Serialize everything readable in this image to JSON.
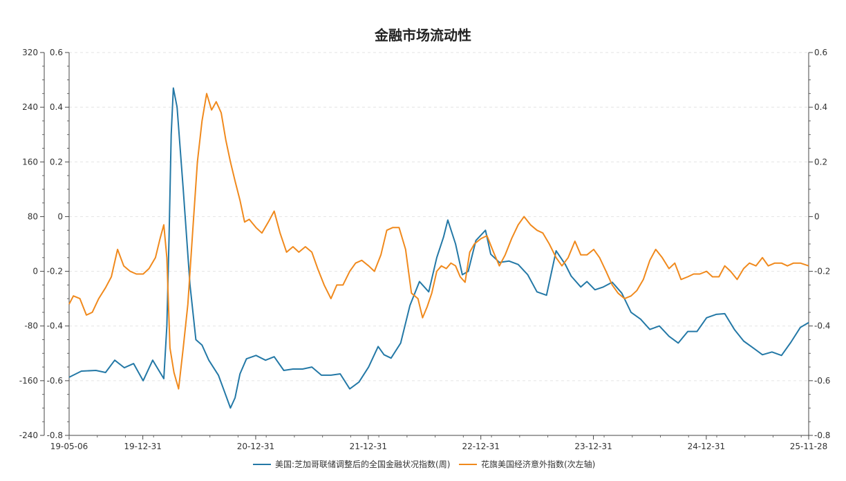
{
  "chart_data": {
    "type": "line",
    "title": "金融市场流动性",
    "x_ticks": [
      "19-05-06",
      "19-12-31",
      "20-12-31",
      "21-12-31",
      "22-12-31",
      "23-12-31",
      "24-12-31",
      "25-11-28"
    ],
    "x_tick_dates": [
      "2019-05-06",
      "2019-12-31",
      "2020-12-31",
      "2021-12-31",
      "2022-12-31",
      "2023-12-31",
      "2024-12-31",
      "2025-11-28"
    ],
    "y_left_outer": {
      "ticks": [
        "320",
        "240",
        "160",
        "80",
        "0",
        "-80",
        "-160",
        "-240"
      ],
      "range": [
        -240,
        320
      ]
    },
    "y_left_inner": {
      "ticks": [
        "0.6",
        "0.4",
        "0.2",
        "0",
        "-0.2",
        "-0.4",
        "-0.6",
        "-0.8"
      ],
      "range": [
        -0.8,
        0.6
      ]
    },
    "y_right": {
      "ticks": [
        "0.6",
        "0.4",
        "0.2",
        "0",
        "-0.2",
        "-0.4",
        "-0.6",
        "-0.8"
      ],
      "range": [
        -0.8,
        0.6
      ]
    },
    "series": [
      {
        "name": "美国:芝加哥联储调整后的全国金融状况指数(周)",
        "color": "#2378a6",
        "axis": "left-outer",
        "points": [
          [
            "2019-05-06",
            -155
          ],
          [
            "2019-06-15",
            -146
          ],
          [
            "2019-08-01",
            -145
          ],
          [
            "2019-09-01",
            -148
          ],
          [
            "2019-10-01",
            -130
          ],
          [
            "2019-11-01",
            -141
          ],
          [
            "2019-12-01",
            -135
          ],
          [
            "2020-01-01",
            -160
          ],
          [
            "2020-02-01",
            -130
          ],
          [
            "2020-02-25",
            -148
          ],
          [
            "2020-03-08",
            -157
          ],
          [
            "2020-03-18",
            -80
          ],
          [
            "2020-03-25",
            50
          ],
          [
            "2020-04-01",
            200
          ],
          [
            "2020-04-08",
            268
          ],
          [
            "2020-04-20",
            240
          ],
          [
            "2020-05-10",
            120
          ],
          [
            "2020-06-01",
            -20
          ],
          [
            "2020-06-20",
            -100
          ],
          [
            "2020-07-10",
            -108
          ],
          [
            "2020-08-01",
            -130
          ],
          [
            "2020-09-01",
            -152
          ],
          [
            "2020-09-20",
            -175
          ],
          [
            "2020-10-10",
            -200
          ],
          [
            "2020-10-25",
            -185
          ],
          [
            "2020-11-10",
            -150
          ],
          [
            "2020-12-01",
            -128
          ],
          [
            "2021-01-01",
            -123
          ],
          [
            "2021-02-01",
            -130
          ],
          [
            "2021-03-01",
            -125
          ],
          [
            "2021-04-01",
            -145
          ],
          [
            "2021-05-01",
            -143
          ],
          [
            "2021-06-01",
            -143
          ],
          [
            "2021-07-01",
            -140
          ],
          [
            "2021-08-01",
            -152
          ],
          [
            "2021-09-01",
            -152
          ],
          [
            "2021-10-01",
            -150
          ],
          [
            "2021-11-01",
            -172
          ],
          [
            "2021-12-01",
            -162
          ],
          [
            "2022-01-01",
            -140
          ],
          [
            "2022-02-01",
            -110
          ],
          [
            "2022-02-20",
            -122
          ],
          [
            "2022-03-15",
            -127
          ],
          [
            "2022-04-15",
            -105
          ],
          [
            "2022-05-15",
            -50
          ],
          [
            "2022-06-15",
            -15
          ],
          [
            "2022-07-15",
            -30
          ],
          [
            "2022-08-10",
            20
          ],
          [
            "2022-09-01",
            50
          ],
          [
            "2022-09-15",
            75
          ],
          [
            "2022-10-10",
            40
          ],
          [
            "2022-11-01",
            -5
          ],
          [
            "2022-11-20",
            0
          ],
          [
            "2022-12-15",
            45
          ],
          [
            "2023-01-15",
            60
          ],
          [
            "2023-02-01",
            25
          ],
          [
            "2023-03-01",
            13
          ],
          [
            "2023-04-01",
            15
          ],
          [
            "2023-05-01",
            10
          ],
          [
            "2023-06-01",
            -5
          ],
          [
            "2023-07-01",
            -30
          ],
          [
            "2023-08-01",
            -35
          ],
          [
            "2023-09-01",
            30
          ],
          [
            "2023-10-01",
            10
          ],
          [
            "2023-10-20",
            -7
          ],
          [
            "2023-11-20",
            -23
          ],
          [
            "2023-12-10",
            -15
          ],
          [
            "2024-01-05",
            -27
          ],
          [
            "2024-02-01",
            -23
          ],
          [
            "2024-03-01",
            -16
          ],
          [
            "2024-04-01",
            -32
          ],
          [
            "2024-05-01",
            -60
          ],
          [
            "2024-06-01",
            -70
          ],
          [
            "2024-07-01",
            -85
          ],
          [
            "2024-08-01",
            -80
          ],
          [
            "2024-09-01",
            -95
          ],
          [
            "2024-10-01",
            -105
          ],
          [
            "2024-11-01",
            -88
          ],
          [
            "2024-12-01",
            -88
          ],
          [
            "2025-01-01",
            -68
          ],
          [
            "2025-02-01",
            -63
          ],
          [
            "2025-03-01",
            -62
          ],
          [
            "2025-04-01",
            -85
          ],
          [
            "2025-05-01",
            -102
          ],
          [
            "2025-06-01",
            -112
          ],
          [
            "2025-07-01",
            -122
          ],
          [
            "2025-08-01",
            -118
          ],
          [
            "2025-09-01",
            -123
          ],
          [
            "2025-10-01",
            -104
          ],
          [
            "2025-11-01",
            -82
          ],
          [
            "2025-11-28",
            -75
          ]
        ]
      },
      {
        "name": "花旗美国经济意外指数(次左轴)",
        "color": "#f0891c",
        "axis": "left-inner",
        "points": [
          [
            "2019-05-06",
            -0.32
          ],
          [
            "2019-05-20",
            -0.29
          ],
          [
            "2019-06-10",
            -0.3
          ],
          [
            "2019-07-01",
            -0.36
          ],
          [
            "2019-07-20",
            -0.35
          ],
          [
            "2019-08-10",
            -0.3
          ],
          [
            "2019-09-01",
            -0.26
          ],
          [
            "2019-09-20",
            -0.22
          ],
          [
            "2019-10-10",
            -0.12
          ],
          [
            "2019-10-30",
            -0.18
          ],
          [
            "2019-11-20",
            -0.2
          ],
          [
            "2019-12-10",
            -0.21
          ],
          [
            "2020-01-01",
            -0.21
          ],
          [
            "2020-01-20",
            -0.19
          ],
          [
            "2020-02-10",
            -0.15
          ],
          [
            "2020-02-25",
            -0.08
          ],
          [
            "2020-03-08",
            -0.03
          ],
          [
            "2020-03-18",
            -0.15
          ],
          [
            "2020-03-28",
            -0.48
          ],
          [
            "2020-04-10",
            -0.57
          ],
          [
            "2020-04-25",
            -0.63
          ],
          [
            "2020-05-10",
            -0.48
          ],
          [
            "2020-05-25",
            -0.32
          ],
          [
            "2020-06-10",
            -0.05
          ],
          [
            "2020-06-25",
            0.2
          ],
          [
            "2020-07-10",
            0.35
          ],
          [
            "2020-07-25",
            0.45
          ],
          [
            "2020-08-10",
            0.39
          ],
          [
            "2020-08-25",
            0.42
          ],
          [
            "2020-09-10",
            0.38
          ],
          [
            "2020-09-25",
            0.28
          ],
          [
            "2020-10-10",
            0.2
          ],
          [
            "2020-10-25",
            0.13
          ],
          [
            "2020-11-10",
            0.06
          ],
          [
            "2020-11-25",
            -0.02
          ],
          [
            "2020-12-10",
            -0.01
          ],
          [
            "2021-01-01",
            -0.04
          ],
          [
            "2021-01-20",
            -0.06
          ],
          [
            "2021-02-10",
            -0.02
          ],
          [
            "2021-03-01",
            0.02
          ],
          [
            "2021-03-20",
            -0.06
          ],
          [
            "2021-04-10",
            -0.13
          ],
          [
            "2021-05-01",
            -0.11
          ],
          [
            "2021-05-20",
            -0.13
          ],
          [
            "2021-06-10",
            -0.11
          ],
          [
            "2021-07-01",
            -0.13
          ],
          [
            "2021-07-20",
            -0.19
          ],
          [
            "2021-08-10",
            -0.25
          ],
          [
            "2021-09-01",
            -0.3
          ],
          [
            "2021-09-20",
            -0.25
          ],
          [
            "2021-10-10",
            -0.25
          ],
          [
            "2021-11-01",
            -0.2
          ],
          [
            "2021-11-20",
            -0.17
          ],
          [
            "2021-12-10",
            -0.16
          ],
          [
            "2022-01-01",
            -0.18
          ],
          [
            "2022-01-20",
            -0.2
          ],
          [
            "2022-02-10",
            -0.14
          ],
          [
            "2022-03-01",
            -0.05
          ],
          [
            "2022-03-20",
            -0.04
          ],
          [
            "2022-04-10",
            -0.04
          ],
          [
            "2022-05-01",
            -0.12
          ],
          [
            "2022-05-20",
            -0.28
          ],
          [
            "2022-06-10",
            -0.3
          ],
          [
            "2022-06-25",
            -0.37
          ],
          [
            "2022-07-10",
            -0.33
          ],
          [
            "2022-07-25",
            -0.28
          ],
          [
            "2022-08-10",
            -0.2
          ],
          [
            "2022-08-25",
            -0.18
          ],
          [
            "2022-09-10",
            -0.19
          ],
          [
            "2022-09-25",
            -0.17
          ],
          [
            "2022-10-10",
            -0.18
          ],
          [
            "2022-10-25",
            -0.22
          ],
          [
            "2022-11-10",
            -0.24
          ],
          [
            "2022-11-25",
            -0.13
          ],
          [
            "2022-12-10",
            -0.1
          ],
          [
            "2023-01-01",
            -0.08
          ],
          [
            "2023-01-20",
            -0.07
          ],
          [
            "2023-02-10",
            -0.13
          ],
          [
            "2023-03-01",
            -0.18
          ],
          [
            "2023-03-20",
            -0.14
          ],
          [
            "2023-04-10",
            -0.08
          ],
          [
            "2023-05-01",
            -0.03
          ],
          [
            "2023-05-20",
            0.0
          ],
          [
            "2023-06-10",
            -0.03
          ],
          [
            "2023-07-01",
            -0.05
          ],
          [
            "2023-07-20",
            -0.06
          ],
          [
            "2023-08-10",
            -0.1
          ],
          [
            "2023-09-01",
            -0.15
          ],
          [
            "2023-09-20",
            -0.18
          ],
          [
            "2023-10-10",
            -0.15
          ],
          [
            "2023-11-01",
            -0.09
          ],
          [
            "2023-11-20",
            -0.14
          ],
          [
            "2023-12-10",
            -0.14
          ],
          [
            "2024-01-01",
            -0.12
          ],
          [
            "2024-01-20",
            -0.15
          ],
          [
            "2024-02-10",
            -0.2
          ],
          [
            "2024-03-01",
            -0.25
          ],
          [
            "2024-03-20",
            -0.28
          ],
          [
            "2024-04-10",
            -0.3
          ],
          [
            "2024-05-01",
            -0.29
          ],
          [
            "2024-05-20",
            -0.27
          ],
          [
            "2024-06-10",
            -0.23
          ],
          [
            "2024-07-01",
            -0.16
          ],
          [
            "2024-07-20",
            -0.12
          ],
          [
            "2024-08-10",
            -0.15
          ],
          [
            "2024-09-01",
            -0.19
          ],
          [
            "2024-09-20",
            -0.17
          ],
          [
            "2024-10-10",
            -0.23
          ],
          [
            "2024-11-01",
            -0.22
          ],
          [
            "2024-11-20",
            -0.21
          ],
          [
            "2024-12-10",
            -0.21
          ],
          [
            "2025-01-01",
            -0.2
          ],
          [
            "2025-01-20",
            -0.22
          ],
          [
            "2025-02-10",
            -0.22
          ],
          [
            "2025-03-01",
            -0.18
          ],
          [
            "2025-03-20",
            -0.2
          ],
          [
            "2025-04-10",
            -0.23
          ],
          [
            "2025-05-01",
            -0.19
          ],
          [
            "2025-05-20",
            -0.17
          ],
          [
            "2025-06-10",
            -0.18
          ],
          [
            "2025-07-01",
            -0.15
          ],
          [
            "2025-07-20",
            -0.18
          ],
          [
            "2025-08-10",
            -0.17
          ],
          [
            "2025-09-01",
            -0.17
          ],
          [
            "2025-09-20",
            -0.18
          ],
          [
            "2025-10-10",
            -0.17
          ],
          [
            "2025-11-01",
            -0.17
          ],
          [
            "2025-11-28",
            -0.18
          ]
        ]
      }
    ],
    "legend_position": "bottom-center",
    "grid": "horizontal-dashed"
  }
}
